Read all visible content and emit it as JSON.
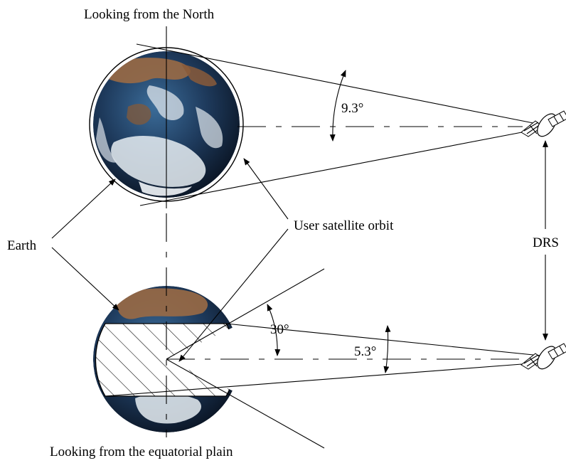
{
  "labels": {
    "top_title": "Looking from the North",
    "bottom_title": "Looking from the equatorial plain",
    "earth": "Earth",
    "user_orbit": "User satellite orbit",
    "drs": "DRS",
    "angle_top": "9.3°",
    "angle_bottom_small": "5.3°",
    "angle_bottom_large": "30°"
  },
  "icons": {
    "earth_top": "earth-globe-icon",
    "earth_bottom": "earth-globe-icon",
    "satellite": "satellite-icon"
  },
  "colors": {
    "ocean": "#1e3a5c",
    "land": "#9a6a45",
    "cloud": "#e8eef3"
  }
}
